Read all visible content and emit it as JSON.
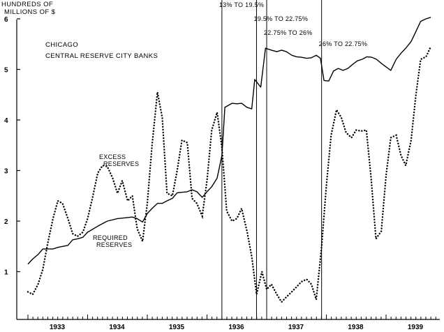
{
  "chart_data": {
    "type": "line",
    "ylabel_line1": "HUNDREDS OF",
    "ylabel_line2": "MILLIONS OF $",
    "title_line1": "CHICAGO",
    "title_line2": "CENTRAL RESERVE CITY BANKS",
    "xlim": [
      1933.0,
      1940.0
    ],
    "ylim": [
      0,
      6.2
    ],
    "x_ticks": [
      1933,
      1934,
      1935,
      1936,
      1937,
      1938,
      1939
    ],
    "y_ticks": [
      1,
      2,
      3,
      4,
      5,
      6
    ],
    "grid": false,
    "series": [
      {
        "name": "REQUIRED RESERVES",
        "line_style": "solid",
        "points": [
          [
            1933.0,
            1.15
          ],
          [
            1933.08,
            1.25
          ],
          [
            1933.17,
            1.34
          ],
          [
            1933.25,
            1.45
          ],
          [
            1933.42,
            1.45
          ],
          [
            1933.5,
            1.48
          ],
          [
            1933.58,
            1.5
          ],
          [
            1933.67,
            1.52
          ],
          [
            1933.75,
            1.63
          ],
          [
            1933.83,
            1.65
          ],
          [
            1933.92,
            1.68
          ],
          [
            1934.0,
            1.78
          ],
          [
            1934.17,
            1.9
          ],
          [
            1934.33,
            2.0
          ],
          [
            1934.5,
            2.05
          ],
          [
            1934.67,
            2.07
          ],
          [
            1934.75,
            2.08
          ],
          [
            1934.83,
            2.05
          ],
          [
            1934.92,
            1.98
          ],
          [
            1935.0,
            2.15
          ],
          [
            1935.08,
            2.25
          ],
          [
            1935.17,
            2.35
          ],
          [
            1935.25,
            2.35
          ],
          [
            1935.33,
            2.4
          ],
          [
            1935.42,
            2.45
          ],
          [
            1935.5,
            2.56
          ],
          [
            1935.58,
            2.57
          ],
          [
            1935.67,
            2.58
          ],
          [
            1935.75,
            2.62
          ],
          [
            1935.83,
            2.58
          ],
          [
            1935.92,
            2.47
          ],
          [
            1936.0,
            2.58
          ],
          [
            1936.08,
            2.68
          ],
          [
            1936.17,
            2.85
          ],
          [
            1936.25,
            3.3
          ],
          [
            1936.3,
            4.25
          ],
          [
            1936.42,
            4.33
          ],
          [
            1936.5,
            4.32
          ],
          [
            1936.58,
            4.33
          ],
          [
            1936.67,
            4.25
          ],
          [
            1936.75,
            4.22
          ],
          [
            1936.8,
            4.8
          ],
          [
            1936.9,
            4.65
          ],
          [
            1936.98,
            5.42
          ],
          [
            1937.08,
            5.38
          ],
          [
            1937.17,
            5.35
          ],
          [
            1937.25,
            5.38
          ],
          [
            1937.33,
            5.35
          ],
          [
            1937.42,
            5.28
          ],
          [
            1937.5,
            5.25
          ],
          [
            1937.58,
            5.24
          ],
          [
            1937.67,
            5.22
          ],
          [
            1937.75,
            5.23
          ],
          [
            1937.83,
            5.28
          ],
          [
            1937.9,
            5.22
          ],
          [
            1937.96,
            4.78
          ],
          [
            1938.04,
            4.77
          ],
          [
            1938.12,
            4.97
          ],
          [
            1938.2,
            5.02
          ],
          [
            1938.28,
            4.98
          ],
          [
            1938.36,
            5.02
          ],
          [
            1938.44,
            5.1
          ],
          [
            1938.52,
            5.17
          ],
          [
            1938.6,
            5.2
          ],
          [
            1938.68,
            5.25
          ],
          [
            1938.76,
            5.24
          ],
          [
            1938.84,
            5.2
          ],
          [
            1938.92,
            5.12
          ],
          [
            1939.0,
            5.05
          ],
          [
            1939.08,
            4.98
          ],
          [
            1939.17,
            5.2
          ],
          [
            1939.25,
            5.32
          ],
          [
            1939.33,
            5.42
          ],
          [
            1939.42,
            5.55
          ],
          [
            1939.5,
            5.75
          ],
          [
            1939.58,
            5.95
          ],
          [
            1939.67,
            6.0
          ],
          [
            1939.75,
            6.03
          ]
        ]
      },
      {
        "name": "EXCESS RESERVES",
        "line_style": "dotted",
        "points": [
          [
            1933.0,
            0.6
          ],
          [
            1933.08,
            0.55
          ],
          [
            1933.17,
            0.75
          ],
          [
            1933.25,
            1.05
          ],
          [
            1933.33,
            1.55
          ],
          [
            1933.42,
            2.05
          ],
          [
            1933.5,
            2.4
          ],
          [
            1933.58,
            2.35
          ],
          [
            1933.67,
            2.05
          ],
          [
            1933.75,
            1.75
          ],
          [
            1933.83,
            1.7
          ],
          [
            1933.92,
            1.78
          ],
          [
            1934.0,
            2.05
          ],
          [
            1934.08,
            2.45
          ],
          [
            1934.17,
            2.95
          ],
          [
            1934.25,
            3.1
          ],
          [
            1934.33,
            3.08
          ],
          [
            1934.42,
            2.85
          ],
          [
            1934.5,
            2.55
          ],
          [
            1934.58,
            2.8
          ],
          [
            1934.67,
            2.4
          ],
          [
            1934.75,
            2.5
          ],
          [
            1934.83,
            1.85
          ],
          [
            1934.92,
            1.6
          ],
          [
            1935.0,
            2.35
          ],
          [
            1935.08,
            3.5
          ],
          [
            1935.17,
            4.55
          ],
          [
            1935.25,
            4.05
          ],
          [
            1935.33,
            2.55
          ],
          [
            1935.42,
            2.5
          ],
          [
            1935.5,
            3.0
          ],
          [
            1935.58,
            3.6
          ],
          [
            1935.67,
            3.55
          ],
          [
            1935.75,
            2.45
          ],
          [
            1935.83,
            2.35
          ],
          [
            1935.92,
            2.1
          ],
          [
            1936.0,
            2.8
          ],
          [
            1936.08,
            3.8
          ],
          [
            1936.17,
            4.15
          ],
          [
            1936.25,
            3.45
          ],
          [
            1936.33,
            2.2
          ],
          [
            1936.42,
            2.0
          ],
          [
            1936.5,
            2.05
          ],
          [
            1936.58,
            2.25
          ],
          [
            1936.67,
            1.8
          ],
          [
            1936.75,
            1.3
          ],
          [
            1936.83,
            0.55
          ],
          [
            1936.92,
            1.0
          ],
          [
            1937.0,
            0.65
          ],
          [
            1937.08,
            0.75
          ],
          [
            1937.17,
            0.55
          ],
          [
            1937.25,
            0.4
          ],
          [
            1937.33,
            0.5
          ],
          [
            1937.42,
            0.6
          ],
          [
            1937.5,
            0.7
          ],
          [
            1937.58,
            0.8
          ],
          [
            1937.67,
            0.85
          ],
          [
            1937.75,
            0.75
          ],
          [
            1937.83,
            0.45
          ],
          [
            1937.92,
            1.5
          ],
          [
            1938.0,
            2.7
          ],
          [
            1938.08,
            3.7
          ],
          [
            1938.17,
            4.2
          ],
          [
            1938.25,
            4.05
          ],
          [
            1938.33,
            3.75
          ],
          [
            1938.42,
            3.65
          ],
          [
            1938.5,
            3.8
          ],
          [
            1938.58,
            3.78
          ],
          [
            1938.67,
            3.8
          ],
          [
            1938.75,
            2.85
          ],
          [
            1938.83,
            1.65
          ],
          [
            1938.92,
            1.8
          ],
          [
            1939.0,
            2.9
          ],
          [
            1939.08,
            3.65
          ],
          [
            1939.17,
            3.7
          ],
          [
            1939.25,
            3.3
          ],
          [
            1939.33,
            3.1
          ],
          [
            1939.42,
            3.6
          ],
          [
            1939.5,
            4.5
          ],
          [
            1939.58,
            5.2
          ],
          [
            1939.67,
            5.25
          ],
          [
            1939.75,
            5.45
          ]
        ]
      }
    ],
    "annotations": [
      {
        "text": "13% TO 19.5%",
        "x": 1936.25
      },
      {
        "text": "19.5% TO 22.75%",
        "x": 1936.83
      },
      {
        "text": "22.75% TO 26%",
        "x": 1937.0
      },
      {
        "text": "26% TO 22.75%",
        "x": 1937.92
      }
    ],
    "series_labels": {
      "excess_line1": "EXCESS",
      "excess_line2": "RESERVES",
      "required_line1": "REQUIRED",
      "required_line2": "RESERVES"
    }
  }
}
